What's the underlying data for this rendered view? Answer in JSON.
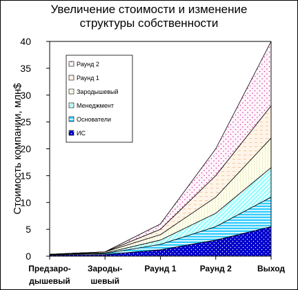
{
  "chart_data": {
    "type": "area",
    "stacked": true,
    "title_lines": [
      "Увеличение стоимости и изменение",
      "структуры собственности"
    ],
    "ylabel": "Стоимость компании, млн$",
    "xlabel": "",
    "categories": [
      [
        "Предзаро-",
        "дышевый"
      ],
      [
        "Зароды-",
        "шевый"
      ],
      [
        "Раунд 1"
      ],
      [
        "Раунд 2"
      ],
      [
        "Выход"
      ]
    ],
    "ylim": [
      0,
      40
    ],
    "yticks": [
      0,
      5,
      10,
      15,
      20,
      25,
      30,
      35,
      40
    ],
    "grid": false,
    "legend_position": "top-left",
    "series": [
      {
        "name": "ИС",
        "values": [
          0.2,
          0.3,
          1.2,
          3.0,
          5.5
        ],
        "color": "#0000cc",
        "pattern": "dots-on-blue"
      },
      {
        "name": "Основатели",
        "values": [
          0.1,
          0.2,
          1.0,
          2.5,
          5.5
        ],
        "color": "#33ccff",
        "pattern": "horizontal-stripes"
      },
      {
        "name": "Менеджмент",
        "values": [
          0.05,
          0.1,
          0.8,
          2.5,
          5.5
        ],
        "color": "#99ffff",
        "pattern": "diagonal-lines"
      },
      {
        "name": "Зародышевый",
        "values": [
          0.0,
          0.2,
          1.0,
          3.0,
          5.5
        ],
        "color": "#ffffe0",
        "pattern": "vertical-lines"
      },
      {
        "name": "Раунд 1",
        "values": [
          0.0,
          0.0,
          1.0,
          4.0,
          6.0
        ],
        "color": "#ffeedd",
        "pattern": "dashes"
      },
      {
        "name": "Раунд 2",
        "values": [
          0.0,
          0.0,
          1.0,
          5.0,
          12.0
        ],
        "color": "#ffeeff",
        "pattern": "dots"
      }
    ]
  }
}
